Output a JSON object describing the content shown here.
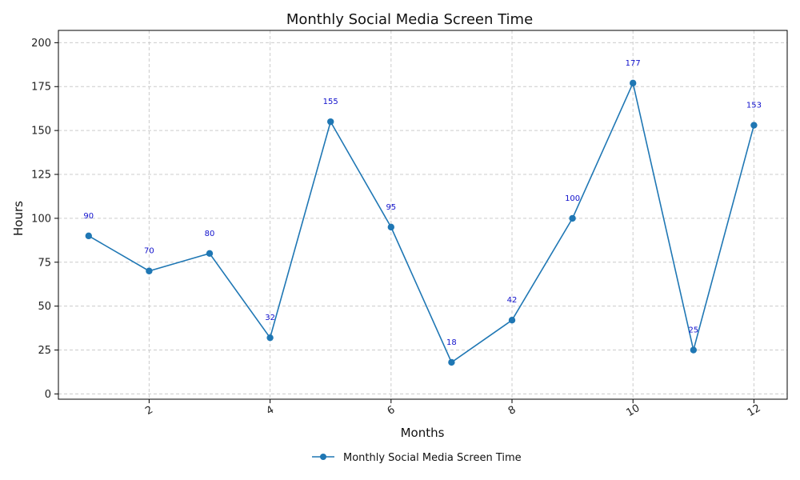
{
  "chart_data": {
    "type": "line",
    "title": "Monthly Social Media Screen Time",
    "xlabel": "Months",
    "ylabel": "Hours",
    "x": [
      1,
      2,
      3,
      4,
      5,
      6,
      7,
      8,
      9,
      10,
      11,
      12
    ],
    "series": [
      {
        "name": "Monthly Social Media Screen Time",
        "values": [
          90,
          70,
          80,
          32,
          155,
          95,
          18,
          42,
          100,
          177,
          25,
          153
        ],
        "color": "#1f77b4"
      }
    ],
    "data_labels": [
      "90",
      "70",
      "80",
      "32",
      "155",
      "95",
      "18",
      "42",
      "100",
      "177",
      "25",
      "153"
    ],
    "data_label_color": "#0000cc",
    "xlim": [
      0.5,
      12.55
    ],
    "ylim": [
      -3,
      207
    ],
    "x_ticks": [
      2,
      4,
      6,
      8,
      10,
      12
    ],
    "x_tick_labels": [
      "2",
      "4",
      "6",
      "8",
      "10",
      "12"
    ],
    "y_ticks": [
      0,
      25,
      50,
      75,
      100,
      125,
      150,
      175,
      200
    ],
    "y_tick_labels": [
      "0",
      "25",
      "50",
      "75",
      "100",
      "125",
      "150",
      "175",
      "200"
    ],
    "grid": true,
    "legend_position": "bottom-center"
  }
}
